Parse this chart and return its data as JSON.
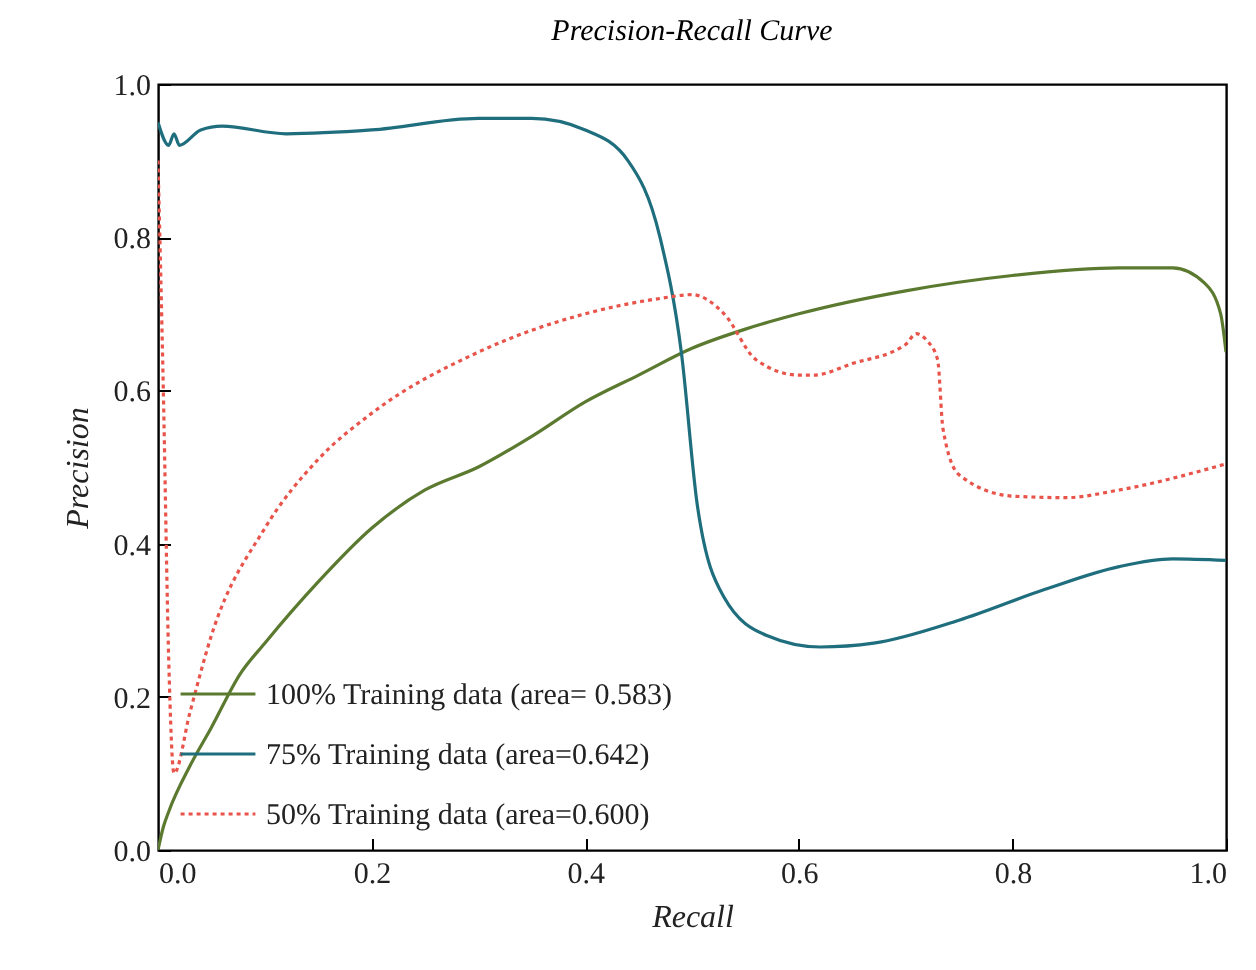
{
  "chart_data": {
    "type": "line",
    "title": "Precision-Recall Curve",
    "xlabel": "Recall",
    "ylabel": "Precision",
    "xlim": [
      0,
      1
    ],
    "ylim": [
      0,
      1
    ],
    "xticks": [
      {
        "value": 0,
        "label": "0.0"
      },
      {
        "value": 0.2,
        "label": "0.2"
      },
      {
        "value": 0.4,
        "label": "0.4"
      },
      {
        "value": 0.6,
        "label": "0.6"
      },
      {
        "value": 0.8,
        "label": "0.8"
      },
      {
        "value": 1,
        "label": "1.0"
      }
    ],
    "yticks": [
      {
        "value": 0,
        "label": "0.0"
      },
      {
        "value": 0.2,
        "label": "0.2"
      },
      {
        "value": 0.4,
        "label": "0.4"
      },
      {
        "value": 0.6,
        "label": "0.6"
      },
      {
        "value": 0.8,
        "label": "0.8"
      },
      {
        "value": 1,
        "label": "1.0"
      }
    ],
    "grid": false,
    "legend": "bottom left",
    "marker": "none",
    "series": [
      {
        "name": "100% Training data (area= 0.583)",
        "color": "#5b7a30",
        "line_style": "solid",
        "x": [
          0,
          0.005,
          0.01,
          0.03,
          0.05,
          0.077,
          0.1,
          0.15,
          0.2,
          0.25,
          0.3,
          0.35,
          0.4,
          0.45,
          0.5,
          0.55,
          0.6,
          0.7,
          0.8,
          0.9,
          0.95,
          0.98,
          0.995,
          1
        ],
        "values": [
          0,
          0.03,
          0.05,
          0.11,
          0.16,
          0.23,
          0.27,
          0.35,
          0.42,
          0.47,
          0.5,
          0.54,
          0.585,
          0.62,
          0.655,
          0.68,
          0.7,
          0.73,
          0.75,
          0.76,
          0.76,
          0.74,
          0.7,
          0.65
        ]
      },
      {
        "name": "75% Training data (area=0.642)",
        "color": "#1f6e7e",
        "line_style": "solid",
        "x": [
          0,
          0.01,
          0.015,
          0.02,
          0.04,
          0.06,
          0.12,
          0.2,
          0.3,
          0.35,
          0.4,
          0.44,
          0.47,
          0.49,
          0.505,
          0.53,
          0.57,
          0.62,
          0.67,
          0.75,
          0.83,
          0.9,
          0.95,
          1
        ],
        "values": [
          0.95,
          0.92,
          0.935,
          0.92,
          0.94,
          0.945,
          0.935,
          0.94,
          0.955,
          0.955,
          0.94,
          0.9,
          0.8,
          0.65,
          0.45,
          0.33,
          0.28,
          0.265,
          0.27,
          0.3,
          0.34,
          0.37,
          0.38,
          0.378
        ]
      },
      {
        "name": "50% Training data (area=0.600)",
        "color": "#e8534a",
        "line_style": "dotted",
        "x": [
          0,
          0.005,
          0.01,
          0.015,
          0.03,
          0.05,
          0.1,
          0.15,
          0.2,
          0.3,
          0.4,
          0.47,
          0.5,
          0.53,
          0.56,
          0.6,
          0.614,
          0.65,
          0.7,
          0.71,
          0.72,
          0.73,
          0.735,
          0.75,
          0.8,
          0.85,
          0.9,
          1
        ],
        "values": [
          0.9,
          0.6,
          0.25,
          0.1,
          0.18,
          0.28,
          0.42,
          0.51,
          0.57,
          0.65,
          0.7,
          0.72,
          0.725,
          0.7,
          0.64,
          0.62,
          0.62,
          0.635,
          0.66,
          0.674,
          0.665,
          0.64,
          0.55,
          0.49,
          0.462,
          0.46,
          0.47,
          0.504
        ]
      }
    ]
  }
}
